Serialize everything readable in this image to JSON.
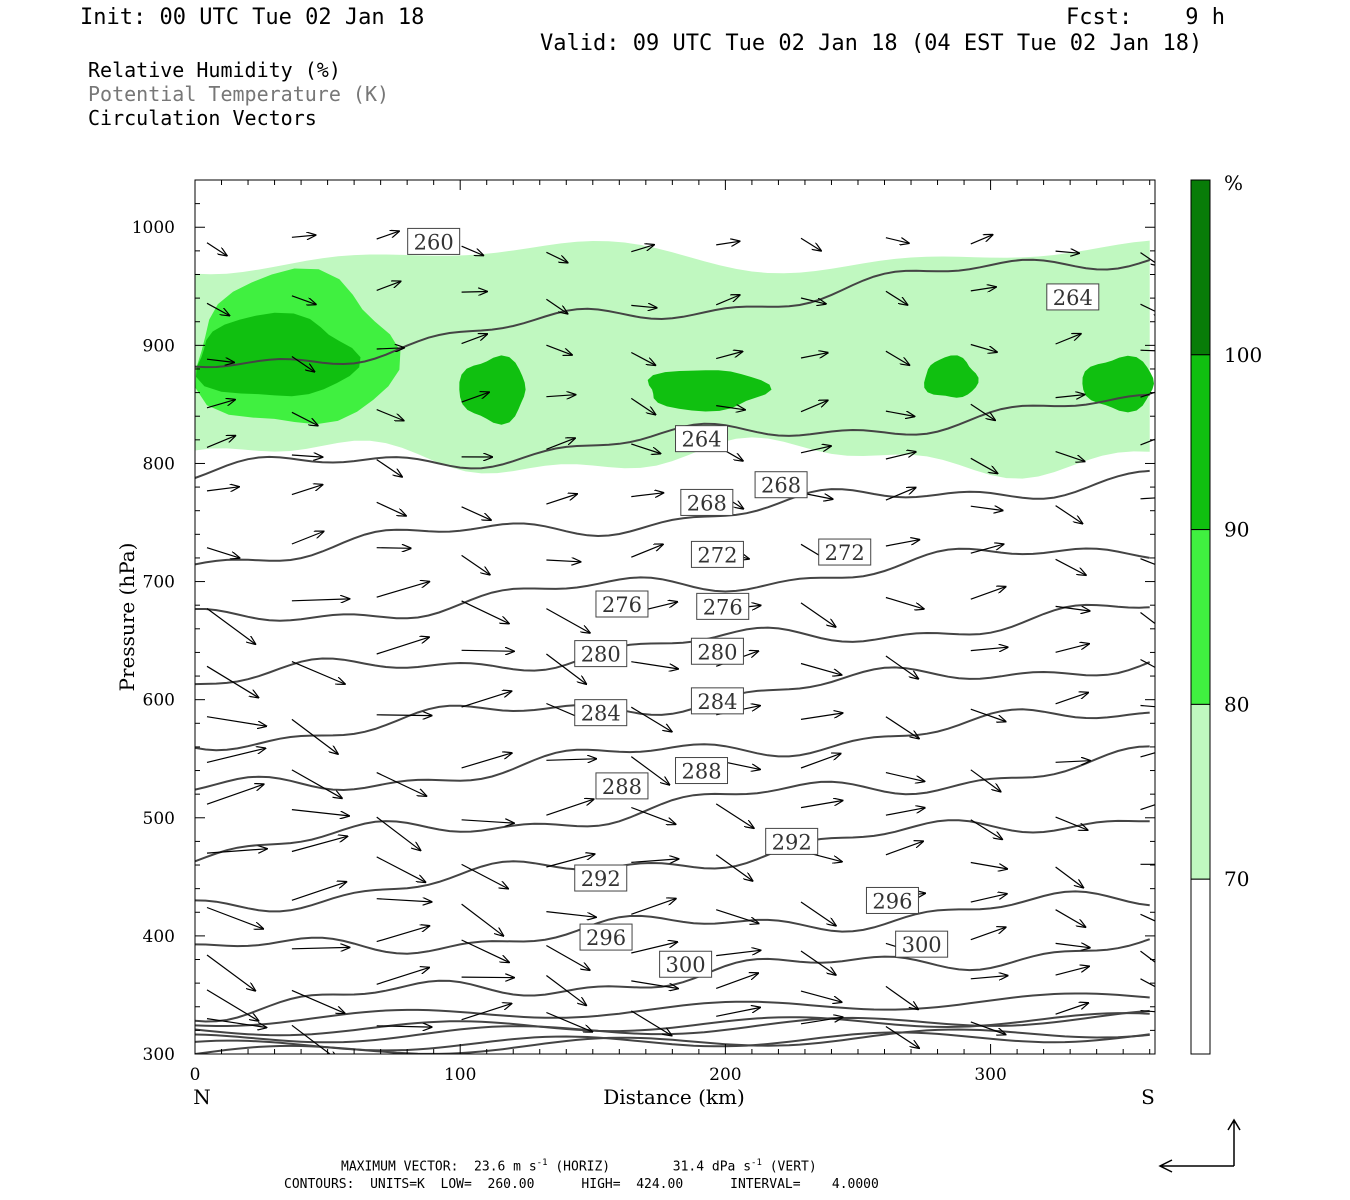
{
  "header": {
    "init": "Init: 00 UTC Tue 02 Jan 18",
    "fcst": "Fcst:    9 h",
    "valid": "Valid: 09 UTC Tue 02 Jan 18 (04 EST Tue 02 Jan 18)"
  },
  "fields": [
    {
      "label": "Relative Humidity (%)",
      "color": "#000000"
    },
    {
      "label": "Potential Temperature (K)",
      "color": "#777777"
    },
    {
      "label": "Circulation Vectors",
      "color": "#000000"
    }
  ],
  "footer": {
    "max_vector_prefix": "MAXIMUM VECTOR:  23.6 m s",
    "max_vector_horiz": " (HORIZ)",
    "max_vector_vert_prefix": "31.4 dPa s",
    "max_vector_vert": " (VERT)",
    "exponent": "-1",
    "contours": "CONTOURS:  UNITS=K  LOW=  260.00      HIGH=  424.00      INTERVAL=    4.0000"
  },
  "chart_data": {
    "type": "cross-section",
    "xlabel": "Distance (km)",
    "ylabel": "Pressure (hPa)",
    "x_start_label": "N",
    "x_end_label": "S",
    "xlim": [
      0,
      362
    ],
    "ylim": [
      1040,
      300
    ],
    "x_ticks": [
      0,
      100,
      200,
      300
    ],
    "y_ticks": [
      300,
      400,
      500,
      600,
      700,
      800,
      900,
      1000
    ],
    "colorbar": {
      "unit": "%",
      "levels": [
        70,
        80,
        90,
        100
      ],
      "colors": [
        "#ffffff",
        "#c0f8c0",
        "#40f040",
        "#10c010",
        "#087c08"
      ]
    },
    "theta_contours": [
      {
        "value": 300,
        "label_at": [
          [
            185,
            376
          ],
          [
            274,
            393
          ]
        ]
      },
      {
        "value": 296,
        "label_at": [
          [
            155,
            399
          ],
          [
            263,
            430
          ]
        ]
      },
      {
        "value": 292,
        "label_at": [
          [
            153,
            449
          ],
          [
            225,
            480
          ]
        ]
      },
      {
        "value": 288,
        "label_at": [
          [
            161,
            527
          ],
          [
            191,
            540
          ]
        ]
      },
      {
        "value": 284,
        "label_at": [
          [
            153,
            589
          ],
          [
            197,
            599
          ]
        ]
      },
      {
        "value": 280,
        "label_at": [
          [
            153,
            639
          ],
          [
            197,
            641
          ]
        ]
      },
      {
        "value": 276,
        "label_at": [
          [
            161,
            681
          ],
          [
            199,
            679
          ]
        ]
      },
      {
        "value": 272,
        "label_at": [
          [
            197,
            723
          ],
          [
            245,
            725
          ]
        ]
      },
      {
        "value": 268,
        "label_at": [
          [
            193,
            767
          ],
          [
            221,
            782
          ]
        ]
      },
      {
        "value": 264,
        "label_at": [
          [
            191,
            821
          ],
          [
            331,
            941
          ]
        ]
      },
      {
        "value": 260,
        "label_at": [
          [
            90,
            988
          ]
        ]
      }
    ],
    "rh_regions": [
      {
        "level": 70,
        "x": [
          0,
          362
        ],
        "p": [
          805,
          975
        ]
      },
      {
        "level": 80,
        "x": [
          0,
          75
        ],
        "p": [
          830,
          960
        ]
      },
      {
        "level": 90,
        "x": [
          0,
          60
        ],
        "p": [
          855,
          925
        ]
      },
      {
        "level": 90,
        "x": [
          100,
          125
        ],
        "p": [
          835,
          890
        ]
      },
      {
        "level": 90,
        "x": [
          170,
          215
        ],
        "p": [
          845,
          880
        ]
      },
      {
        "level": 90,
        "x": [
          275,
          295
        ],
        "p": [
          855,
          890
        ]
      },
      {
        "level": 90,
        "x": [
          335,
          362
        ],
        "p": [
          845,
          890
        ]
      }
    ]
  }
}
